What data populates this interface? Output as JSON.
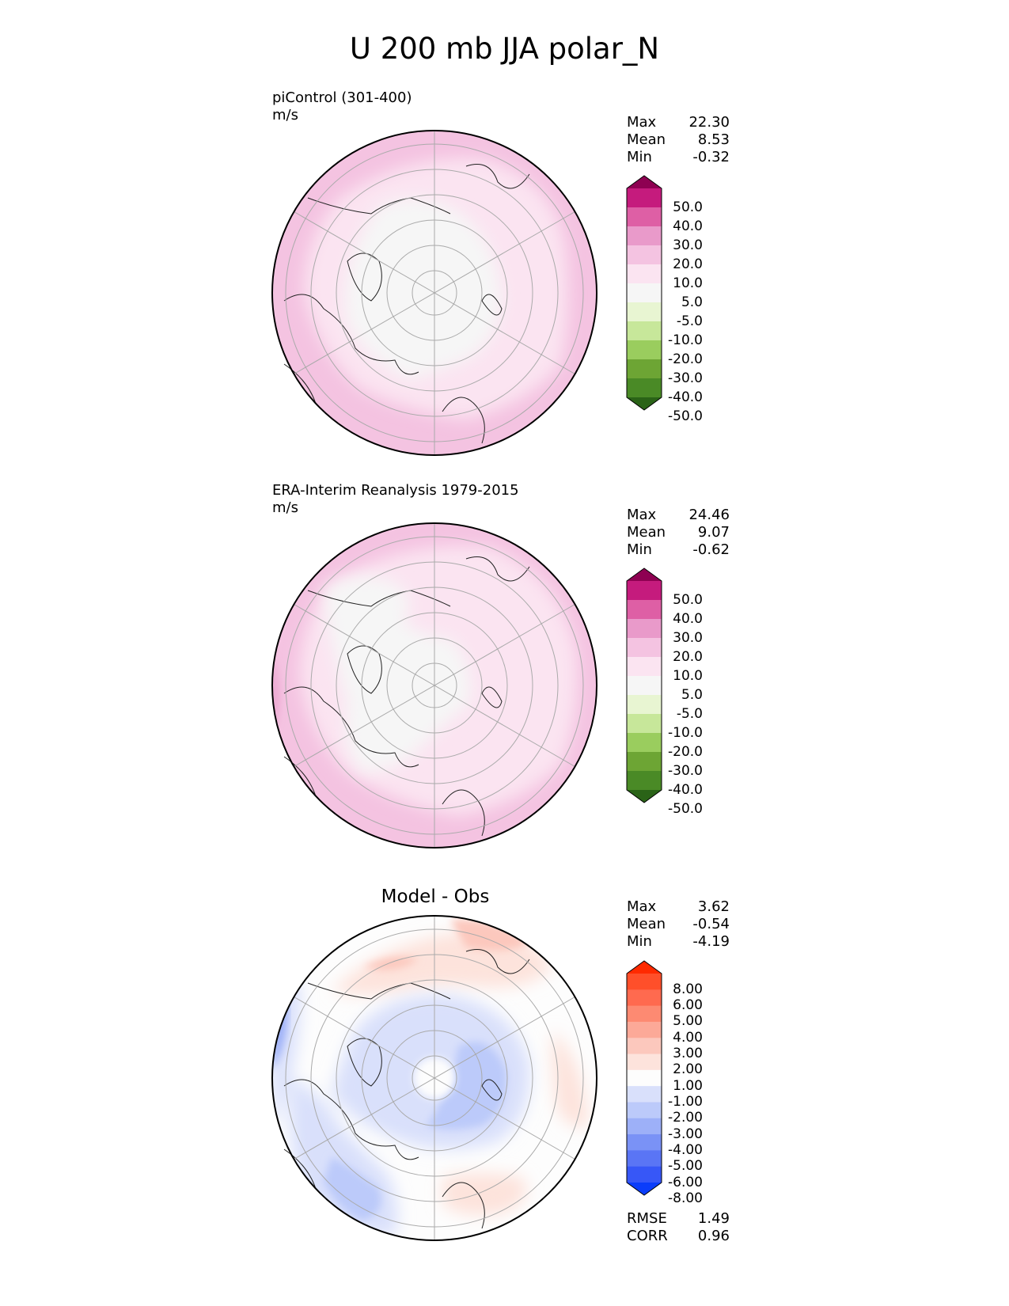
{
  "title": "U 200 mb JJA polar_N",
  "chart_data": [
    {
      "type": "heatmap",
      "projection": "north polar stereographic",
      "title": "piControl (301-400)",
      "units": "m/s",
      "stats": {
        "max": "22.30",
        "mean": "8.53",
        "min": "-0.32"
      },
      "colorbar": {
        "ticks": [
          "50.0",
          "40.0",
          "30.0",
          "20.0",
          "10.0",
          "5.0",
          "-5.0",
          "-10.0",
          "-20.0",
          "-30.0",
          "-40.0",
          "-50.0"
        ],
        "colors": [
          "#8e0152",
          "#c51b7d",
          "#de5fa5",
          "#e99aca",
          "#f4c3e1",
          "#fbe4f1",
          "#f6f6f6",
          "#e8f5d2",
          "#c7e79a",
          "#9acd5e",
          "#6da534",
          "#4a8a26",
          "#2a6317"
        ],
        "extend": "both"
      },
      "dominant_pattern": "near 5.0 to 10.0 over the pole, increasing to 10.0 to 20.0 toward the rim, locally 20.0 to 30.0"
    },
    {
      "type": "heatmap",
      "projection": "north polar stereographic",
      "title": "ERA-Interim Reanalysis 1979-2015",
      "units": "m/s",
      "stats": {
        "max": "24.46",
        "mean": "9.07",
        "min": "-0.62"
      },
      "colorbar": {
        "ticks": [
          "50.0",
          "40.0",
          "30.0",
          "20.0",
          "10.0",
          "5.0",
          "-5.0",
          "-10.0",
          "-20.0",
          "-30.0",
          "-40.0",
          "-50.0"
        ],
        "colors": [
          "#8e0152",
          "#c51b7d",
          "#de5fa5",
          "#e99aca",
          "#f4c3e1",
          "#fbe4f1",
          "#f6f6f6",
          "#e8f5d2",
          "#c7e79a",
          "#9acd5e",
          "#6da534",
          "#4a8a26",
          "#2a6317"
        ],
        "extend": "both"
      },
      "dominant_pattern": "5.0 to 10.0 over the pole, 10.0 to 20.0 near the rim, 20.0 to 30.0 at the lower-left edge"
    },
    {
      "type": "heatmap",
      "projection": "north polar stereographic",
      "title": "Model - Obs",
      "stats": {
        "max": "3.62",
        "mean": "-0.54",
        "min": "-4.19"
      },
      "colorbar": {
        "ticks": [
          "8.00",
          "6.00",
          "5.00",
          "4.00",
          "3.00",
          "2.00",
          "1.00",
          "-1.00",
          "-2.00",
          "-3.00",
          "-4.00",
          "-5.00",
          "-6.00",
          "-8.00"
        ],
        "colors": [
          "#ff2a00",
          "#ff4f2a",
          "#ff6a4f",
          "#fd8a72",
          "#fca998",
          "#fcc8bd",
          "#fde3dc",
          "#fdfdfd",
          "#d9e0fb",
          "#bccafa",
          "#9db0f8",
          "#7a92f6",
          "#5a75f5",
          "#3757f7",
          "#0b3dfa"
        ],
        "extend": "both"
      },
      "metrics": {
        "rmse": "1.49",
        "corr": "0.96"
      },
      "dominant_pattern": "negative -1.00 to -4.00 ring over the pole, positive 1.00 to 3.00 patches in the outer ring"
    }
  ],
  "labels": {
    "max": "Max",
    "mean": "Mean",
    "min": "Min",
    "rmse": "RMSE",
    "corr": "CORR"
  }
}
